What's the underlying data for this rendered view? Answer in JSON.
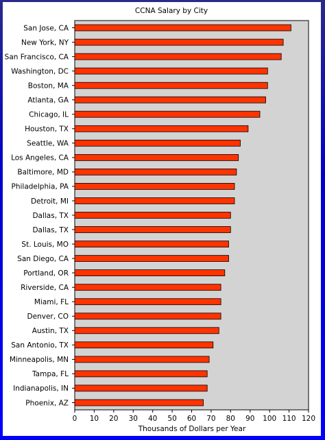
{
  "chart_data": {
    "type": "bar",
    "orientation": "horizontal",
    "title": "CCNA Salary by City",
    "xlabel": "Thousands of Dollars per Year",
    "ylabel": "",
    "xlim": [
      0,
      120
    ],
    "xticks": [
      0,
      10,
      20,
      30,
      40,
      50,
      60,
      70,
      80,
      90,
      100,
      110,
      120
    ],
    "grid": false,
    "legend": "none",
    "categories": [
      "San Jose, CA",
      "New York, NY",
      "San Francisco, CA",
      "Washington, DC",
      "Boston, MA",
      "Atlanta, GA",
      "Chicago, IL",
      "Houston, TX",
      "Seattle, WA",
      "Los Angeles, CA",
      "Baltimore, MD",
      "Philadelphia, PA",
      "Detroit, MI",
      "Dallas, TX",
      "Dallas, TX",
      "St. Louis, MO",
      "San Diego, CA",
      "Portland, OR",
      "Riverside, CA",
      "Miami, FL",
      "Denver, CO",
      "Austin, TX",
      "San Antonio, TX",
      "Minneapolis, MN",
      "Tampa, FL",
      "Indianapolis, IN",
      "Phoenix, AZ"
    ],
    "values": [
      111,
      107,
      106,
      99,
      99,
      98,
      95,
      89,
      85,
      84,
      83,
      82,
      82,
      80,
      80,
      79,
      79,
      77,
      75,
      75,
      75,
      74,
      71,
      69,
      68,
      68,
      66
    ],
    "colors": {
      "bar": "#ff3300",
      "plot_background": "#d3d3d3",
      "frame": "#ffffff"
    }
  }
}
